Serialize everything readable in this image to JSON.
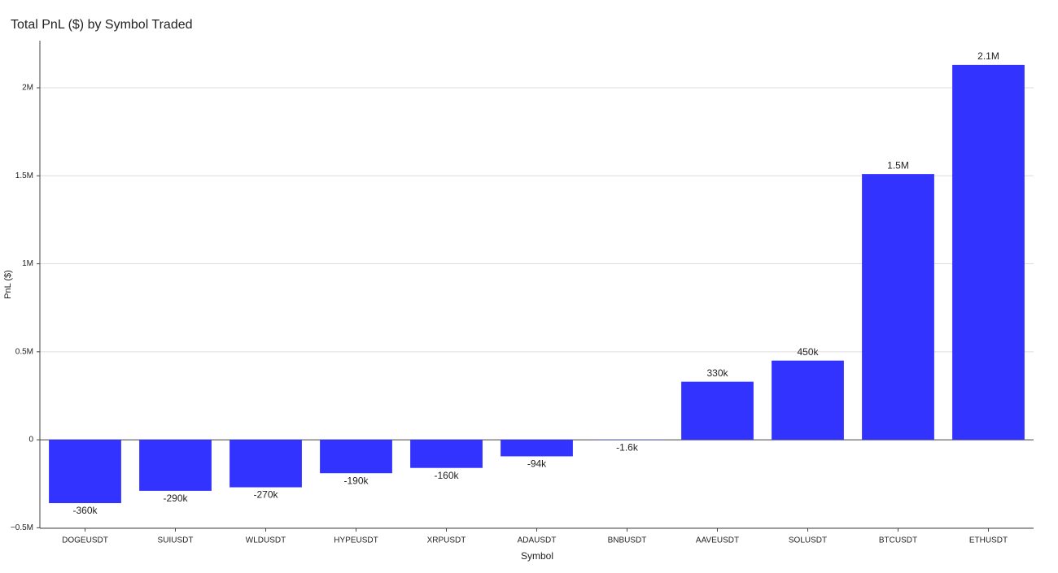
{
  "chart_data": {
    "type": "bar",
    "title": "Total PnL ($) by Symbol Traded",
    "x_label": "Symbol",
    "y_label": "PnL ($)",
    "categories": [
      "DOGEUSDT",
      "SUIUSDT",
      "WLDUSDT",
      "HYPEUSDT",
      "XRPUSDT",
      "ADAUSDT",
      "BNBUSDT",
      "AAVEUSDT",
      "SOLUSDT",
      "BTCUSDT",
      "ETHUSDT"
    ],
    "values": [
      -360000,
      -290000,
      -270000,
      -190000,
      -160000,
      -94000,
      -1600,
      330000,
      450000,
      1510000,
      2130000
    ],
    "value_labels": [
      "-360k",
      "-290k",
      "-270k",
      "-190k",
      "-160k",
      "-94k",
      "-1.6k",
      "330k",
      "450k",
      "1.5M",
      "2.1M"
    ],
    "color": "#3333ff",
    "ylim": [
      -503000,
      2268000
    ],
    "yticks": [
      {
        "value": -500000,
        "label": "−0.5M"
      },
      0,
      {
        "value": 500000,
        "label": "0.5M"
      },
      {
        "value": 1000000,
        "label": "1M"
      },
      {
        "value": 1500000,
        "label": "1.5M"
      },
      {
        "value": 2000000,
        "label": "2M"
      }
    ],
    "grid": true
  }
}
